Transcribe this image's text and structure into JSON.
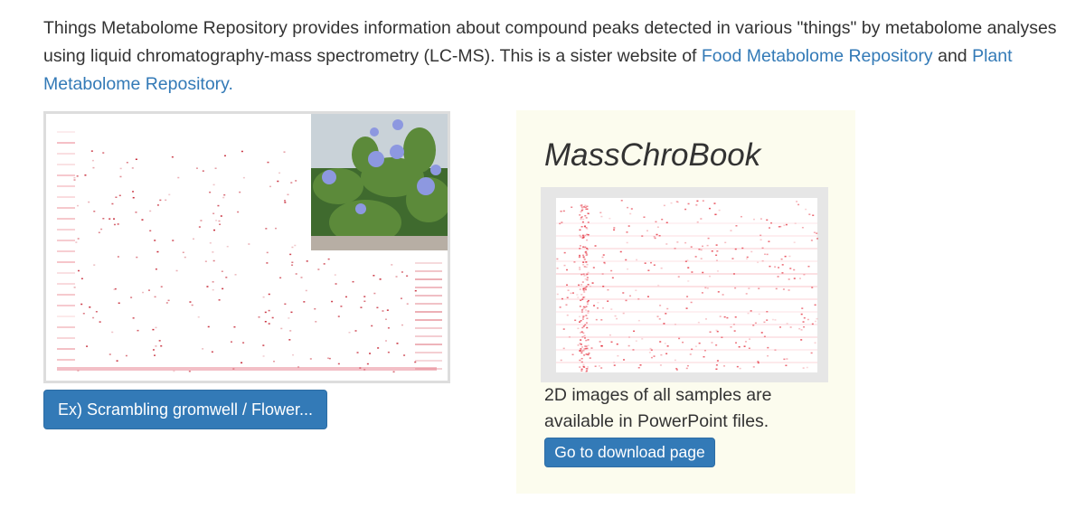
{
  "intro": {
    "text": "Things Metabolome Repository provides information about compound peaks detected in various \"things\" by metabolome analyses using liquid chromatography-mass spectrometry (LC-MS). This is a sister website of ",
    "link1": "Food Metabolome Repository",
    "and": " and ",
    "link2": "Plant Metabolome Repository.",
    "link_color": "#337ab7"
  },
  "example": {
    "button_label": "Ex) Scrambling gromwell / Flower...",
    "image_icon": "2d-lcms-peak-map-image",
    "photo_icon": "flower-photo"
  },
  "masschrobook": {
    "title": "MassChroBook",
    "image_icon": "2d-lcms-peak-map-image",
    "description": "2D images of all samples are available in PowerPoint files.",
    "button_label": "Go to download page",
    "panel_color": "#fcfcee"
  },
  "colors": {
    "button": "#337ab7",
    "peaks": "#e0202a"
  }
}
